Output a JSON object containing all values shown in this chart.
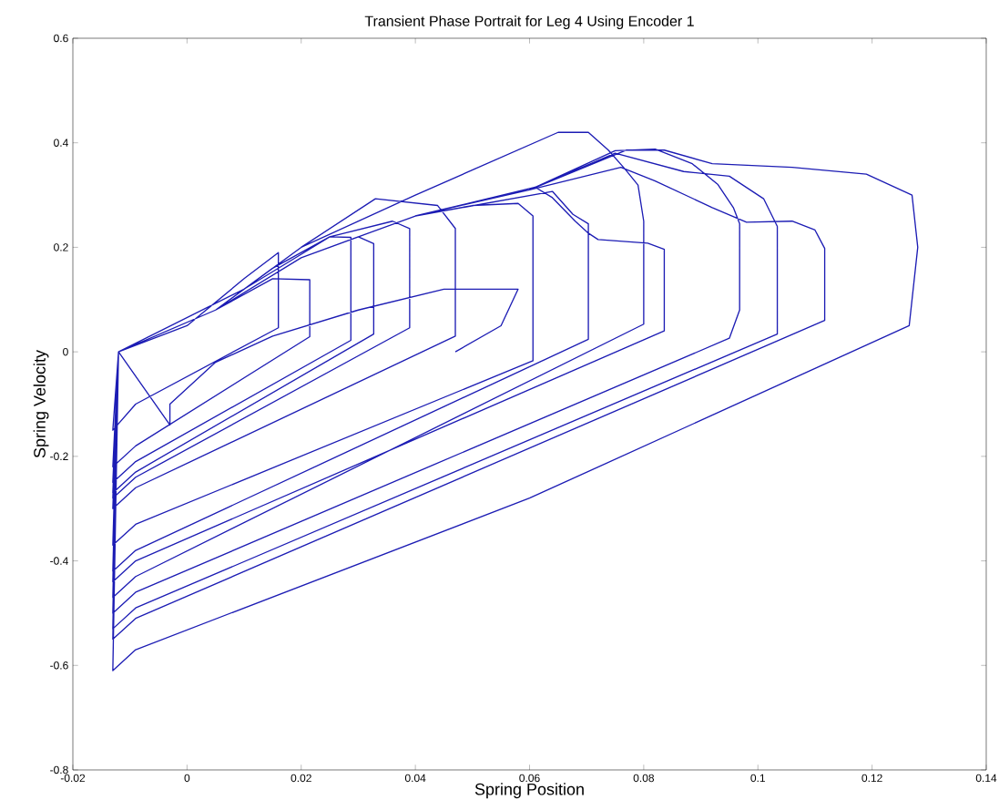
{
  "chart_data": {
    "type": "line",
    "title": "Transient Phase Portrait for Leg 4 Using Encoder 1",
    "xlabel": "Spring Position",
    "ylabel": "Spring Velocity",
    "xlim": [
      -0.02,
      0.14
    ],
    "ylim": [
      -0.8,
      0.6
    ],
    "xticks": [
      -0.02,
      0,
      0.02,
      0.04,
      0.06,
      0.08,
      0.1,
      0.12,
      0.14
    ],
    "yticks": [
      -0.8,
      -0.6,
      -0.4,
      -0.2,
      0,
      0.2,
      0.4,
      0.6
    ],
    "series": [
      {
        "color": "#1c1cb4",
        "x": [
          -0.012,
          -0.013,
          -0.009,
          0.016,
          0.016,
          0.01,
          0.0,
          -0.012,
          -0.013,
          -0.009,
          0.0215,
          0.0215,
          0.015,
          0.005,
          -0.012,
          -0.013,
          -0.009,
          0.0287,
          0.0287,
          0.025,
          0.015,
          0.005,
          -0.012,
          -0.013,
          -0.009,
          0.0327,
          0.0327,
          0.03,
          0.02,
          0.005,
          -0.012,
          -0.013,
          -0.009,
          0.039,
          0.039,
          0.036,
          0.025,
          0.01,
          -0.012,
          -0.013,
          -0.009,
          0.047,
          0.047,
          0.0439,
          0.033,
          0.02,
          0.005,
          -0.012,
          -0.013,
          -0.009,
          0.0606,
          0.0606,
          0.058,
          0.05,
          0.04,
          0.02,
          0.005,
          -0.012,
          -0.013,
          -0.009,
          0.0703,
          0.0703,
          0.0676,
          0.064,
          0.04,
          0.02,
          0.005,
          -0.012,
          -0.013,
          -0.009,
          0.0836,
          0.0836,
          0.0807,
          0.072,
          0.0703,
          0.068,
          0.064,
          0.061,
          0.04,
          0.02,
          0.005,
          -0.012,
          -0.013,
          -0.009,
          0.08,
          0.08,
          0.079,
          0.0767,
          0.0738,
          0.0703,
          0.065,
          0.04,
          0.02,
          0.005,
          -0.012,
          -0.013,
          -0.009,
          0.095,
          0.0968,
          0.0968,
          0.0957,
          0.093,
          0.0885,
          0.082,
          0.075,
          0.06,
          0.04,
          0.02,
          0.005,
          -0.012,
          -0.013,
          -0.009,
          0.1034,
          0.1034,
          0.101,
          0.095,
          0.087,
          0.075,
          0.06,
          0.04,
          0.02,
          0.005,
          -0.012,
          -0.013,
          -0.009,
          0.1117,
          0.1117,
          0.11,
          0.106,
          0.098,
          0.092,
          0.082,
          0.076,
          0.06,
          0.04,
          0.02,
          0.005,
          -0.012,
          -0.013,
          -0.009,
          0.06,
          0.1265,
          0.128,
          0.127,
          0.119,
          0.106,
          0.092,
          0.0836,
          0.077,
          0.06,
          0.04,
          0.02,
          0.005,
          -0.012,
          -0.003,
          -0.003,
          0.005,
          0.015,
          0.03,
          0.045,
          0.058,
          0.055,
          0.047
        ],
        "values": [
          0.0,
          -0.15,
          -0.1,
          0.046,
          0.19,
          0.14,
          0.05,
          0.0,
          -0.22,
          -0.18,
          0.029,
          0.138,
          0.14,
          0.08,
          0.0,
          -0.25,
          -0.21,
          0.022,
          0.219,
          0.22,
          0.16,
          0.08,
          0.0,
          -0.27,
          -0.23,
          0.034,
          0.207,
          0.22,
          0.18,
          0.08,
          0.0,
          -0.28,
          -0.24,
          0.046,
          0.236,
          0.25,
          0.22,
          0.12,
          0.0,
          -0.3,
          -0.26,
          0.03,
          0.236,
          0.28,
          0.293,
          0.2,
          0.08,
          0.0,
          -0.37,
          -0.33,
          -0.017,
          0.26,
          0.284,
          0.28,
          0.26,
          0.18,
          0.08,
          0.0,
          -0.42,
          -0.38,
          0.024,
          0.245,
          0.263,
          0.307,
          0.26,
          0.18,
          0.08,
          0.0,
          -0.44,
          -0.4,
          0.04,
          0.196,
          0.208,
          0.215,
          0.227,
          0.25,
          0.295,
          0.315,
          0.26,
          0.18,
          0.08,
          0.0,
          -0.47,
          -0.43,
          0.053,
          0.25,
          0.319,
          0.35,
          0.386,
          0.42,
          0.42,
          0.3,
          0.2,
          0.08,
          0.0,
          -0.5,
          -0.46,
          0.026,
          0.08,
          0.245,
          0.276,
          0.32,
          0.36,
          0.388,
          0.385,
          0.31,
          0.26,
          0.18,
          0.08,
          0.0,
          -0.53,
          -0.49,
          0.034,
          0.24,
          0.293,
          0.336,
          0.345,
          0.38,
          0.31,
          0.26,
          0.18,
          0.08,
          0.0,
          -0.55,
          -0.51,
          0.06,
          0.198,
          0.233,
          0.25,
          0.248,
          0.276,
          0.327,
          0.353,
          0.31,
          0.26,
          0.18,
          0.08,
          0.0,
          -0.61,
          -0.57,
          -0.28,
          0.05,
          0.2,
          0.3,
          0.34,
          0.353,
          0.36,
          0.386,
          0.386,
          0.31,
          0.26,
          0.18,
          0.08,
          0.0,
          -0.14,
          -0.1,
          -0.02,
          0.03,
          0.08,
          0.12,
          0.12,
          0.05,
          0.0
        ]
      }
    ]
  }
}
